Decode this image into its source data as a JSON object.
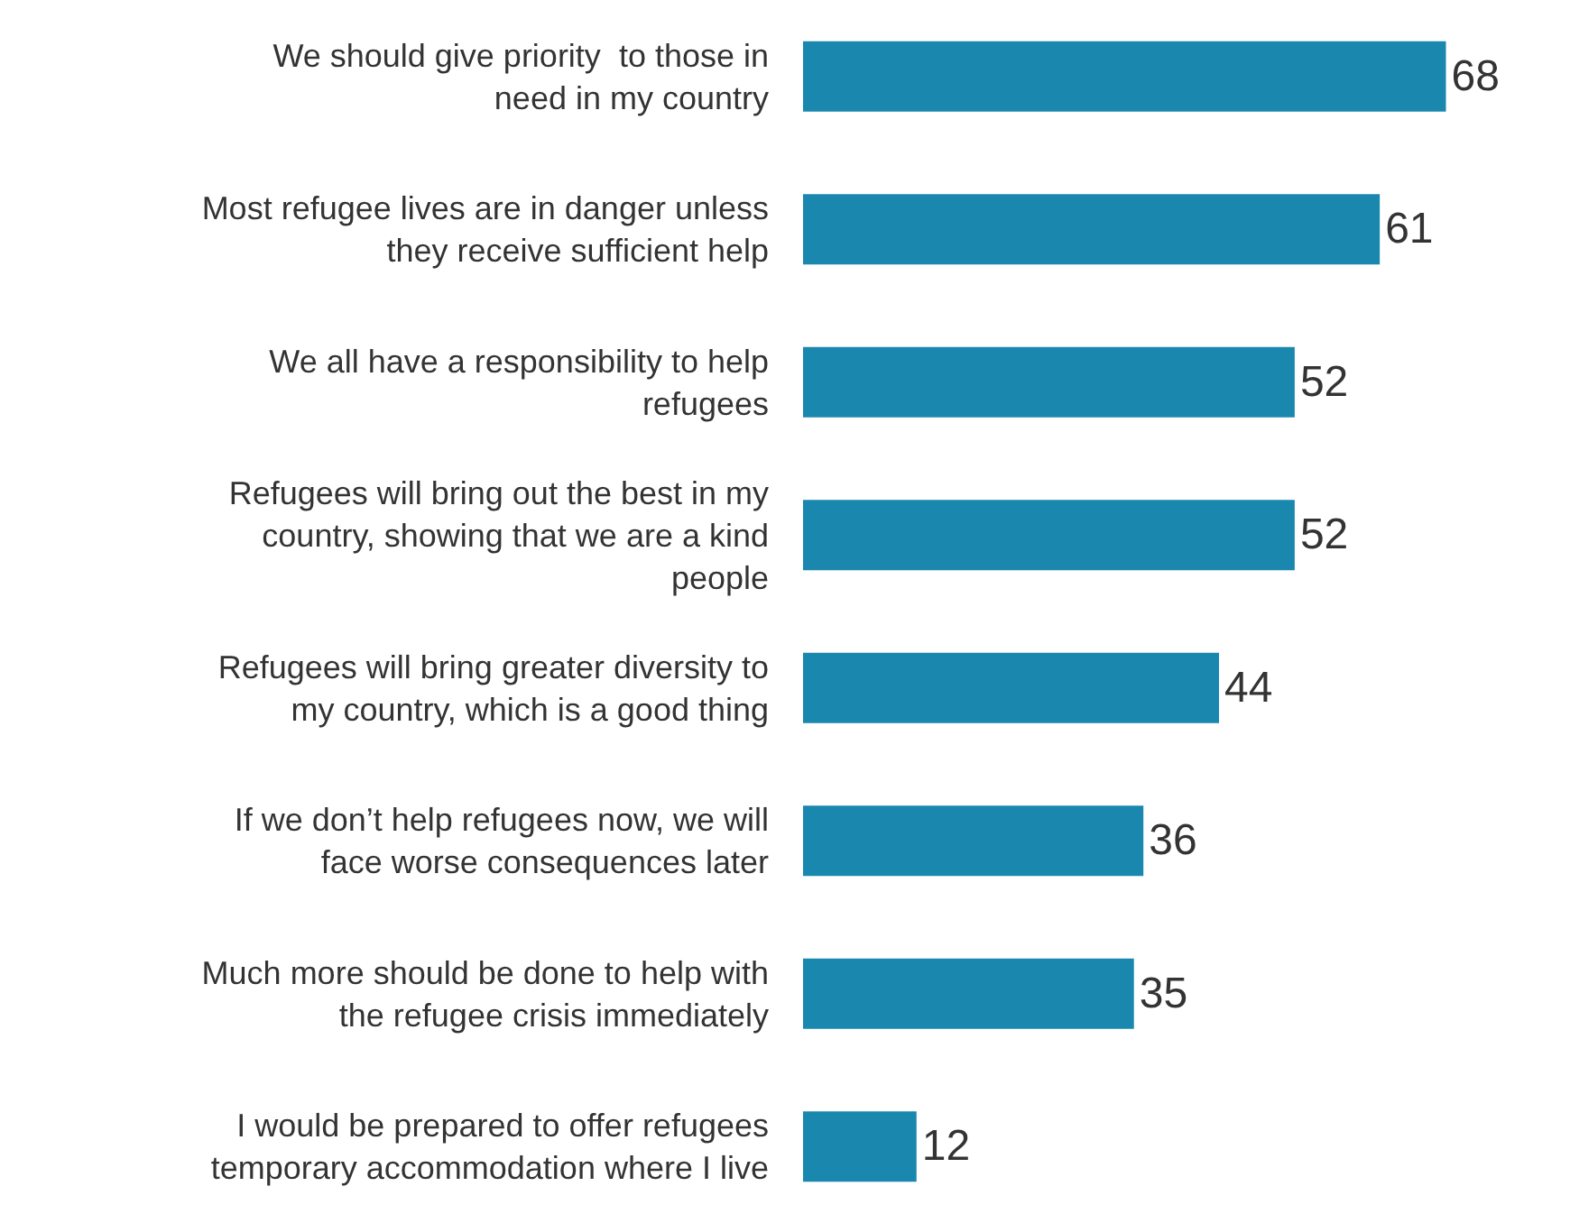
{
  "chart_data": {
    "type": "bar",
    "orientation": "horizontal",
    "data_labels": true,
    "color": "#1a87ae",
    "tick_labels": false,
    "categories": [
      "We should give priority  to those in need in my country",
      "Most refugee lives are in danger unless they receive sufficient help",
      "We all have a responsibility to help refugees",
      "Refugees will bring out the best in my country, showing that we are a kind people",
      "Refugees will bring greater diversity to my country, which is a good thing",
      "If we don’t help refugees now, we will face worse consequences later",
      "Much more should be done to help with the refugee crisis immediately",
      "I would be prepared to offer refugees temporary accommodation where I live"
    ],
    "values": [
      68,
      61,
      52,
      52,
      44,
      36,
      35,
      12
    ]
  }
}
